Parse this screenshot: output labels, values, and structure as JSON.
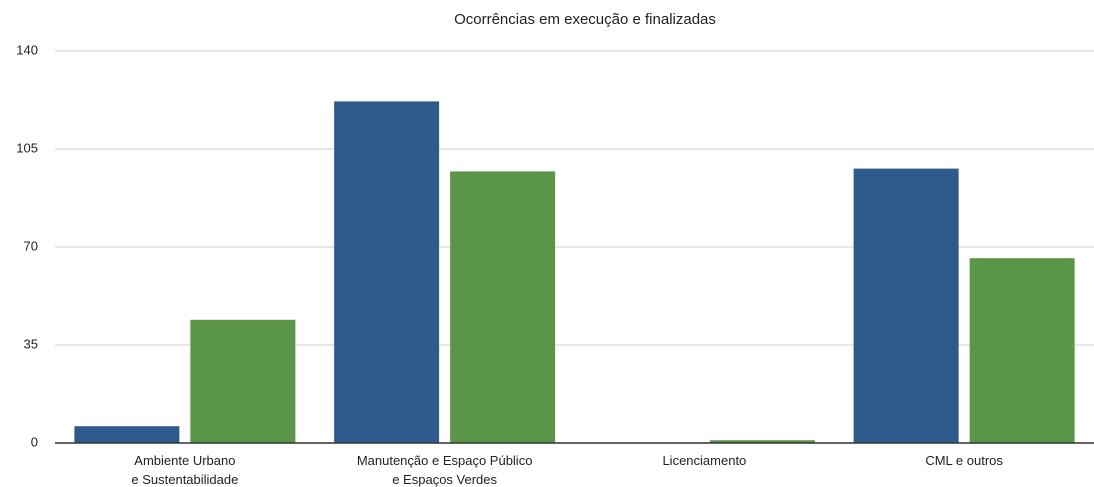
{
  "chart_data": {
    "type": "bar",
    "title": "Ocorrências em execução e finalizadas",
    "categories": [
      "Ambiente Urbano\ne Sustentabilidade",
      "Manutenção e Espaço Público\ne Espaços Verdes",
      "Licenciamento",
      "CML e outros"
    ],
    "series": [
      {
        "color": "#2e5a8c",
        "values": [
          6,
          122,
          0,
          98
        ]
      },
      {
        "color": "#5b9648",
        "values": [
          44,
          97,
          1,
          66
        ]
      }
    ],
    "ylim": [
      0,
      140
    ],
    "yticks": [
      0,
      35,
      70,
      105,
      140
    ],
    "grid": true
  }
}
